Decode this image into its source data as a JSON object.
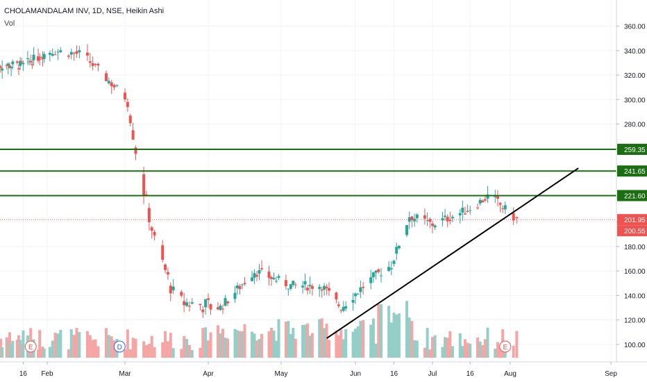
{
  "chart_data": {
    "type": "candlestick",
    "title": "CHOLAMANDALAM INV, 1D, NSE, Heikin Ashi",
    "volume_label": "Vol",
    "x_tick_labels": [
      "16",
      "Feb",
      "Mar",
      "Apr",
      "May",
      "Jun",
      "16",
      "Jul",
      "16",
      "Aug",
      "Sep"
    ],
    "y_tick_labels": [
      100,
      120,
      140,
      160,
      180,
      200,
      220,
      240,
      260,
      280,
      300,
      320,
      340,
      360
    ],
    "ylim": [
      92,
      370
    ],
    "horizontal_levels": [
      {
        "label": "259.35",
        "value": 259.35,
        "color": "#1b6e12"
      },
      {
        "label": "241.65",
        "value": 241.65,
        "color": "#1b6e12"
      },
      {
        "label": "221.60",
        "value": 221.6,
        "color": "#1b6e12"
      }
    ],
    "price_markers": [
      {
        "label": "201.95",
        "value": 201.95,
        "color": "#ef5350"
      },
      {
        "label": "200.55",
        "value": 200.55,
        "color": "#ef5350"
      }
    ],
    "current_price_line": 201.95,
    "trendline": {
      "from": [
        "May 20",
        105
      ],
      "to": [
        "Aug 22",
        244
      ],
      "color": "#000000"
    },
    "event_markers": [
      {
        "label": "E",
        "date": "Jan 21",
        "color": "#ef5350"
      },
      {
        "label": "D",
        "date": "Feb 28",
        "color": "#2962ff"
      },
      {
        "label": "E",
        "date": "Jul 30",
        "color": "#ef5350"
      }
    ],
    "colors": {
      "up": "#26a69a",
      "down": "#ef5350",
      "vol_up": "#94cec7",
      "vol_down": "#f5a6a4",
      "grid": "#f0f3fa",
      "axis_text": "#131722"
    },
    "series_summary": [
      {
        "date": "Jan 16",
        "close": 328
      },
      {
        "date": "Feb 3",
        "close": 340
      },
      {
        "date": "Feb 14",
        "close": 337
      },
      {
        "date": "Mar 2",
        "close": 300
      },
      {
        "date": "Mar 6",
        "close": 245
      },
      {
        "date": "Mar 12",
        "close": 185
      },
      {
        "date": "Mar 20",
        "close": 135
      },
      {
        "date": "Apr 6",
        "close": 130
      },
      {
        "date": "Apr 20",
        "close": 160
      },
      {
        "date": "May 5",
        "close": 148
      },
      {
        "date": "May 18",
        "close": 148
      },
      {
        "date": "May 26",
        "close": 130
      },
      {
        "date": "Jun 8",
        "close": 155
      },
      {
        "date": "Jun 15",
        "close": 165
      },
      {
        "date": "Jun 22",
        "close": 205
      },
      {
        "date": "Jul 1",
        "close": 198
      },
      {
        "date": "Jul 15",
        "close": 210
      },
      {
        "date": "Jul 24",
        "close": 222
      },
      {
        "date": "Aug 3",
        "close": 202
      }
    ]
  }
}
